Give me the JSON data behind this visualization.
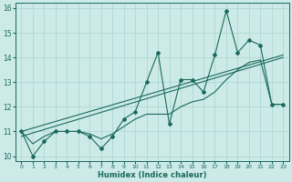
{
  "xlabel": "Humidex (Indice chaleur)",
  "bg_color": "#cceae7",
  "grid_color": "#aad4d0",
  "line_color": "#1a6b5a",
  "xlim": [
    -0.5,
    23.5
  ],
  "ylim": [
    9.8,
    16.2
  ],
  "yticks": [
    10,
    11,
    12,
    13,
    14,
    15,
    16
  ],
  "xticks": [
    0,
    1,
    2,
    3,
    4,
    5,
    6,
    7,
    8,
    9,
    10,
    11,
    12,
    13,
    14,
    15,
    16,
    17,
    18,
    19,
    20,
    21,
    22,
    23
  ],
  "main_x": [
    0,
    1,
    2,
    3,
    4,
    5,
    6,
    7,
    8,
    9,
    10,
    11,
    12,
    13,
    14,
    15,
    16,
    17,
    18,
    19,
    20,
    21,
    22,
    23
  ],
  "main_y": [
    11.0,
    10.0,
    10.6,
    11.0,
    11.0,
    11.0,
    10.8,
    10.3,
    10.8,
    11.5,
    11.8,
    13.0,
    14.2,
    11.3,
    13.1,
    13.1,
    12.6,
    14.1,
    15.9,
    14.2,
    14.7,
    14.5,
    12.1,
    12.1
  ],
  "smooth_y": [
    11.0,
    10.5,
    10.8,
    11.0,
    11.0,
    11.0,
    10.9,
    10.7,
    10.9,
    11.2,
    11.5,
    11.7,
    11.7,
    11.7,
    12.0,
    12.2,
    12.3,
    12.6,
    13.1,
    13.5,
    13.8,
    13.9,
    12.1,
    12.1
  ],
  "trend1_x": [
    0,
    23
  ],
  "trend1_y": [
    10.8,
    14.0
  ],
  "trend2_x": [
    0,
    23
  ],
  "trend2_y": [
    11.0,
    14.1
  ]
}
